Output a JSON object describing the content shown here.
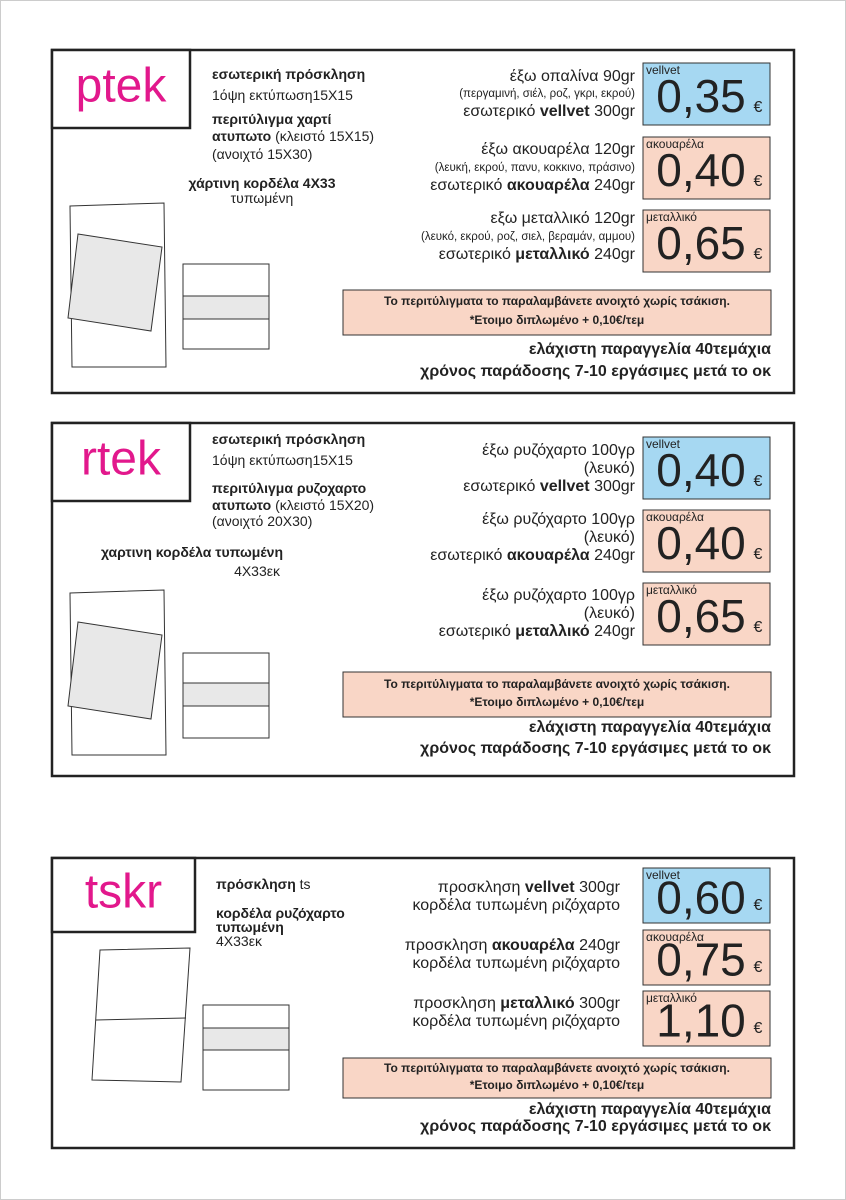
{
  "sections": [
    {
      "code": "ptek",
      "description": [
        [
          {
            "text": "εσωτερική πρόσκληση",
            "bold": true
          }
        ],
        [
          {
            "text": "1όψη εκτύπωση15Χ15"
          }
        ],
        [
          {
            "text": "περιτύλιγμα χαρτί",
            "bold": true
          }
        ],
        [
          {
            "text": "ατυπωτο",
            "bold": true
          },
          {
            "text": " (κλειστό 15Χ15)"
          }
        ],
        [
          {
            "text": "(ανοιχτό 15Χ30)"
          }
        ],
        [
          {
            "text": "χάρτινη κορδέλα 4Χ33",
            "bold": true
          }
        ],
        [
          {
            "text": "τυπωμένη"
          }
        ]
      ],
      "offers": [
        {
          "lines": [
            [
              {
                "text": "έξω οπαλίνα 90gr"
              }
            ],
            [
              {
                "text": "(περγαμινή, σιέλ, ροζ, γκρι, εκρού)",
                "small": true
              }
            ],
            [
              {
                "text": "εσωτερικό "
              },
              {
                "text": "vellvet",
                "bold": true
              },
              {
                "text": " 300gr"
              }
            ]
          ],
          "tag": "vellvet",
          "price": "0,35",
          "currency": "€",
          "color": "#a6d8f2"
        },
        {
          "lines": [
            [
              {
                "text": "έξω ακουαρέλα 120gr"
              }
            ],
            [
              {
                "text": "(λευκή, εκρού, πανυ, κοκκινο, πράσινο)",
                "small": true
              }
            ],
            [
              {
                "text": "εσωτερικό "
              },
              {
                "text": "ακουαρέλα",
                "bold": true
              },
              {
                "text": " 240gr"
              }
            ]
          ],
          "tag": "ακουαρέλα",
          "price": "0,40",
          "currency": "€",
          "color": "#f9d6c6"
        },
        {
          "lines": [
            [
              {
                "text": "εξω μεταλλικό 120gr"
              }
            ],
            [
              {
                "text": "(λευκό, εκρού, ροζ, σιελ, βεραμάν, αμμου)",
                "small": true
              }
            ],
            [
              {
                "text": "εσωτερικό "
              },
              {
                "text": "μεταλλικό",
                "bold": true
              },
              {
                "text": " 240gr"
              }
            ]
          ],
          "tag": "μεταλλικό",
          "price": "0,65",
          "currency": "€",
          "color": "#f9d6c6"
        }
      ],
      "note": [
        "Το περιτύλιγματα το παραλαμβάνετε ανοιχτό χωρίς τσάκιση.",
        "*Ετοιμο διπλωμένο + 0,10€/τεμ"
      ],
      "footer": [
        "ελάχιστη παραγγελία 40τεμάχια",
        "χρόνος παράδοσης 7-10 εργάσιμες μετά το οκ"
      ]
    },
    {
      "code": "rtek",
      "description": [
        [
          {
            "text": "εσωτερική πρόσκληση",
            "bold": true
          }
        ],
        [
          {
            "text": "1όψη εκτύπωση15Χ15"
          }
        ],
        [
          {
            "text": "περιτύλιγμα ρυζοχαρτο",
            "bold": true
          }
        ],
        [
          {
            "text": "ατυπωτο",
            "bold": true
          },
          {
            "text": " (κλειστό 15Χ20)"
          }
        ],
        [
          {
            "text": "(ανοιχτό 20Χ30)"
          }
        ],
        [
          {
            "text": "χαρτινη κορδέλα τυπωμένη",
            "bold": true
          }
        ],
        [
          {
            "text": "4Χ33εκ"
          }
        ]
      ],
      "offers": [
        {
          "lines": [
            [
              {
                "text": "έξω ρυζόχαρτο 100γρ"
              }
            ],
            [
              {
                "text": "(λευκό)"
              }
            ],
            [
              {
                "text": "εσωτερικό "
              },
              {
                "text": "vellvet",
                "bold": true
              },
              {
                "text": " 300gr"
              }
            ]
          ],
          "tag": "vellvet",
          "price": "0,40",
          "currency": "€",
          "color": "#a6d8f2"
        },
        {
          "lines": [
            [
              {
                "text": "έξω ρυζόχαρτο 100γρ"
              }
            ],
            [
              {
                "text": "(λευκό)"
              }
            ],
            [
              {
                "text": "εσωτερικό "
              },
              {
                "text": "ακουαρέλα",
                "bold": true
              },
              {
                "text": " 240gr"
              }
            ]
          ],
          "tag": "ακουαρέλα",
          "price": "0,40",
          "currency": "€",
          "color": "#f9d6c6"
        },
        {
          "lines": [
            [
              {
                "text": "έξω ρυζόχαρτο 100γρ"
              }
            ],
            [
              {
                "text": "(λευκό)"
              }
            ],
            [
              {
                "text": "εσωτερικό "
              },
              {
                "text": "μεταλλικό",
                "bold": true
              },
              {
                "text": " 240gr"
              }
            ]
          ],
          "tag": "μεταλλικό",
          "price": "0,65",
          "currency": "€",
          "color": "#f9d6c6"
        }
      ],
      "note": [
        "Το περιτύλιγματα το παραλαμβάνετε ανοιχτό χωρίς τσάκιση.",
        "*Ετοιμο διπλωμένο + 0,10€/τεμ"
      ],
      "footer": [
        "ελάχιστη παραγγελία 40τεμάχια",
        "χρόνος παράδοσης 7-10 εργάσιμες μετά το οκ"
      ]
    },
    {
      "code": "tskr",
      "description": [
        [
          {
            "text": "πρόσκληση ",
            "bold": true
          },
          {
            "text": "ts"
          }
        ],
        [
          {
            "text": "κορδέλα ρυζόχαρτο",
            "bold": true
          }
        ],
        [
          {
            "text": "τυπωμένη",
            "bold": true
          }
        ],
        [
          {
            "text": "4Χ33εκ"
          }
        ]
      ],
      "offers": [
        {
          "lines": [
            [
              {
                "text": "προσκληση "
              },
              {
                "text": "vellvet",
                "bold": true
              },
              {
                "text": " 300gr"
              }
            ],
            [
              {
                "text": "κορδέλα τυπωμένη ριζόχαρτο"
              }
            ]
          ],
          "tag": "vellvet",
          "price": "0,60",
          "currency": "€",
          "color": "#a6d8f2"
        },
        {
          "lines": [
            [
              {
                "text": "προσκληση "
              },
              {
                "text": "ακουαρέλα",
                "bold": true
              },
              {
                "text": " 240gr"
              }
            ],
            [
              {
                "text": "κορδέλα τυπωμένη ριζόχαρτο"
              }
            ]
          ],
          "tag": "ακουαρέλα",
          "price": "0,75",
          "currency": "€",
          "color": "#f9d6c6"
        },
        {
          "lines": [
            [
              {
                "text": "προσκληση "
              },
              {
                "text": "μεταλλικό",
                "bold": true
              },
              {
                "text": " 300gr"
              }
            ],
            [
              {
                "text": "κορδέλα τυπωμένη ριζόχαρτο"
              }
            ]
          ],
          "tag": "μεταλλικό",
          "price": "1,10",
          "currency": "€",
          "color": "#f9d6c6"
        }
      ],
      "note": [
        "Το περιτύλιγματα το παραλαμβάνετε ανοιχτό χωρίς τσάκιση.",
        "*Ετοιμο διπλωμένο + 0,10€/τεμ"
      ],
      "footer": [
        "ελάχιστη παραγγελία 40τεμάχια",
        "χρόνος παράδοσης 7-10 εργάσιμες μετά το οκ"
      ]
    }
  ]
}
